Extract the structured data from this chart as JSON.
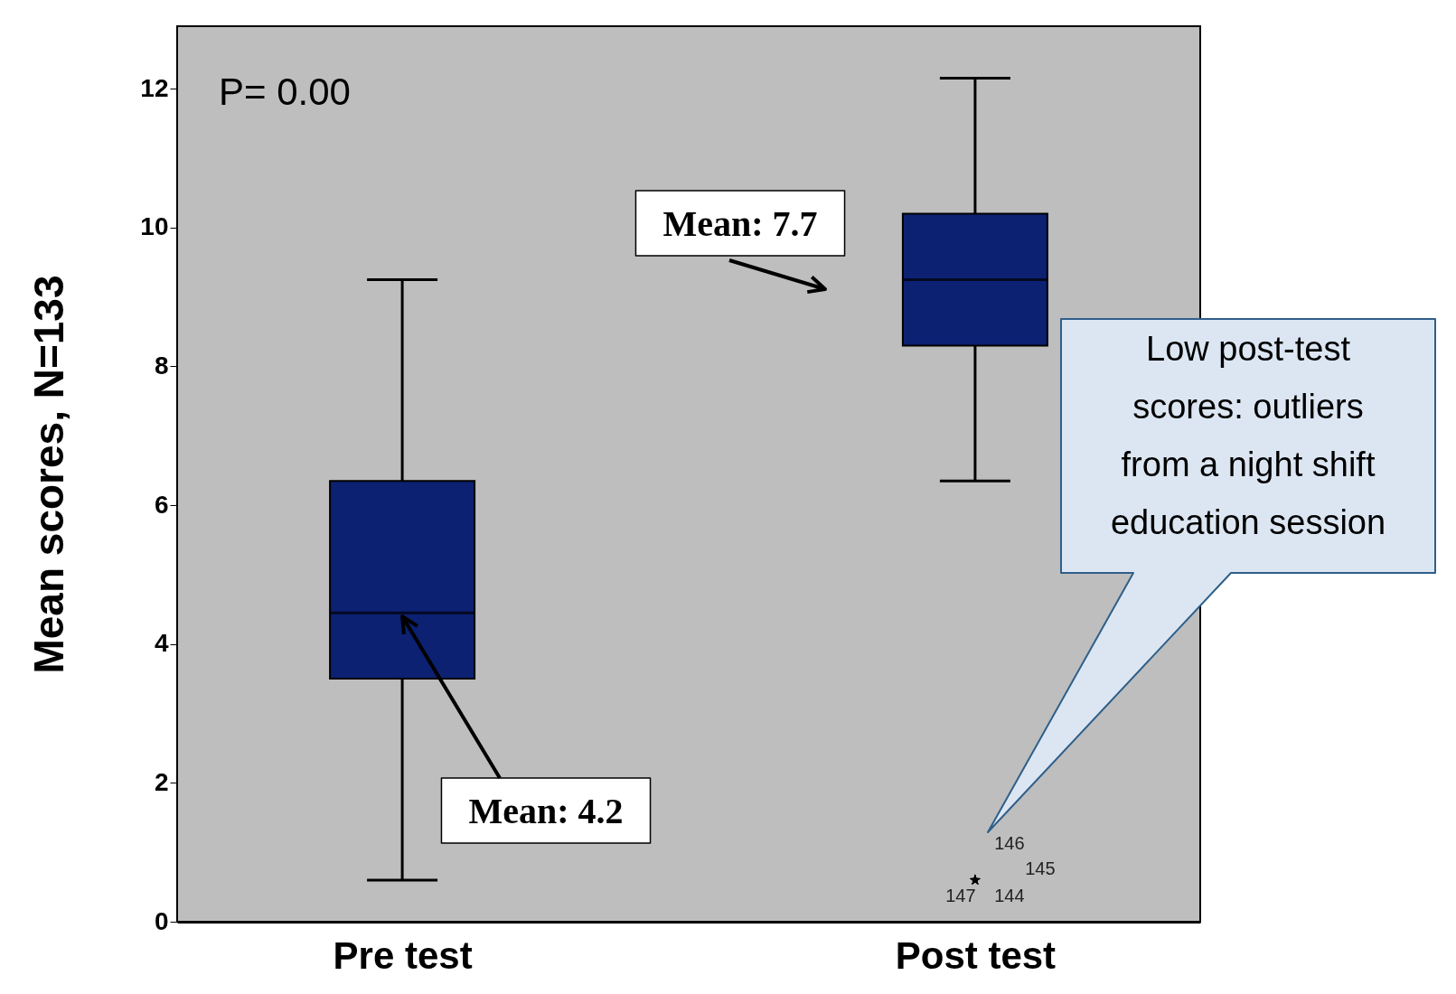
{
  "chart_data": {
    "type": "box",
    "categories": [
      "Pre test",
      "Post test"
    ],
    "ylabel": "Mean scores, N=133",
    "ylim": [
      0,
      12.9
    ],
    "yticks": [
      0,
      2,
      4,
      6,
      8,
      10,
      12
    ],
    "grid": false,
    "marker": "star",
    "series": [
      {
        "color": "#0c2172",
        "boxes": [
          {
            "low": 0.6,
            "q1": 3.5,
            "median": 4.45,
            "q3": 6.35,
            "high": 9.25
          },
          {
            "low": 6.35,
            "q1": 8.3,
            "median": 9.25,
            "q3": 10.2,
            "high": 12.15,
            "outliers": [
              0.6,
              0.6,
              0.6,
              0.6
            ]
          }
        ]
      }
    ],
    "annotations": [
      "P= 0.00",
      "Mean: 7.7",
      {
        "text": "Mean: 4.2",
        "x": "Pre test",
        "y": 4.4
      },
      "Low post-test scores: outliers from a night shift education session",
      "146",
      "145",
      "147",
      "144"
    ]
  }
}
